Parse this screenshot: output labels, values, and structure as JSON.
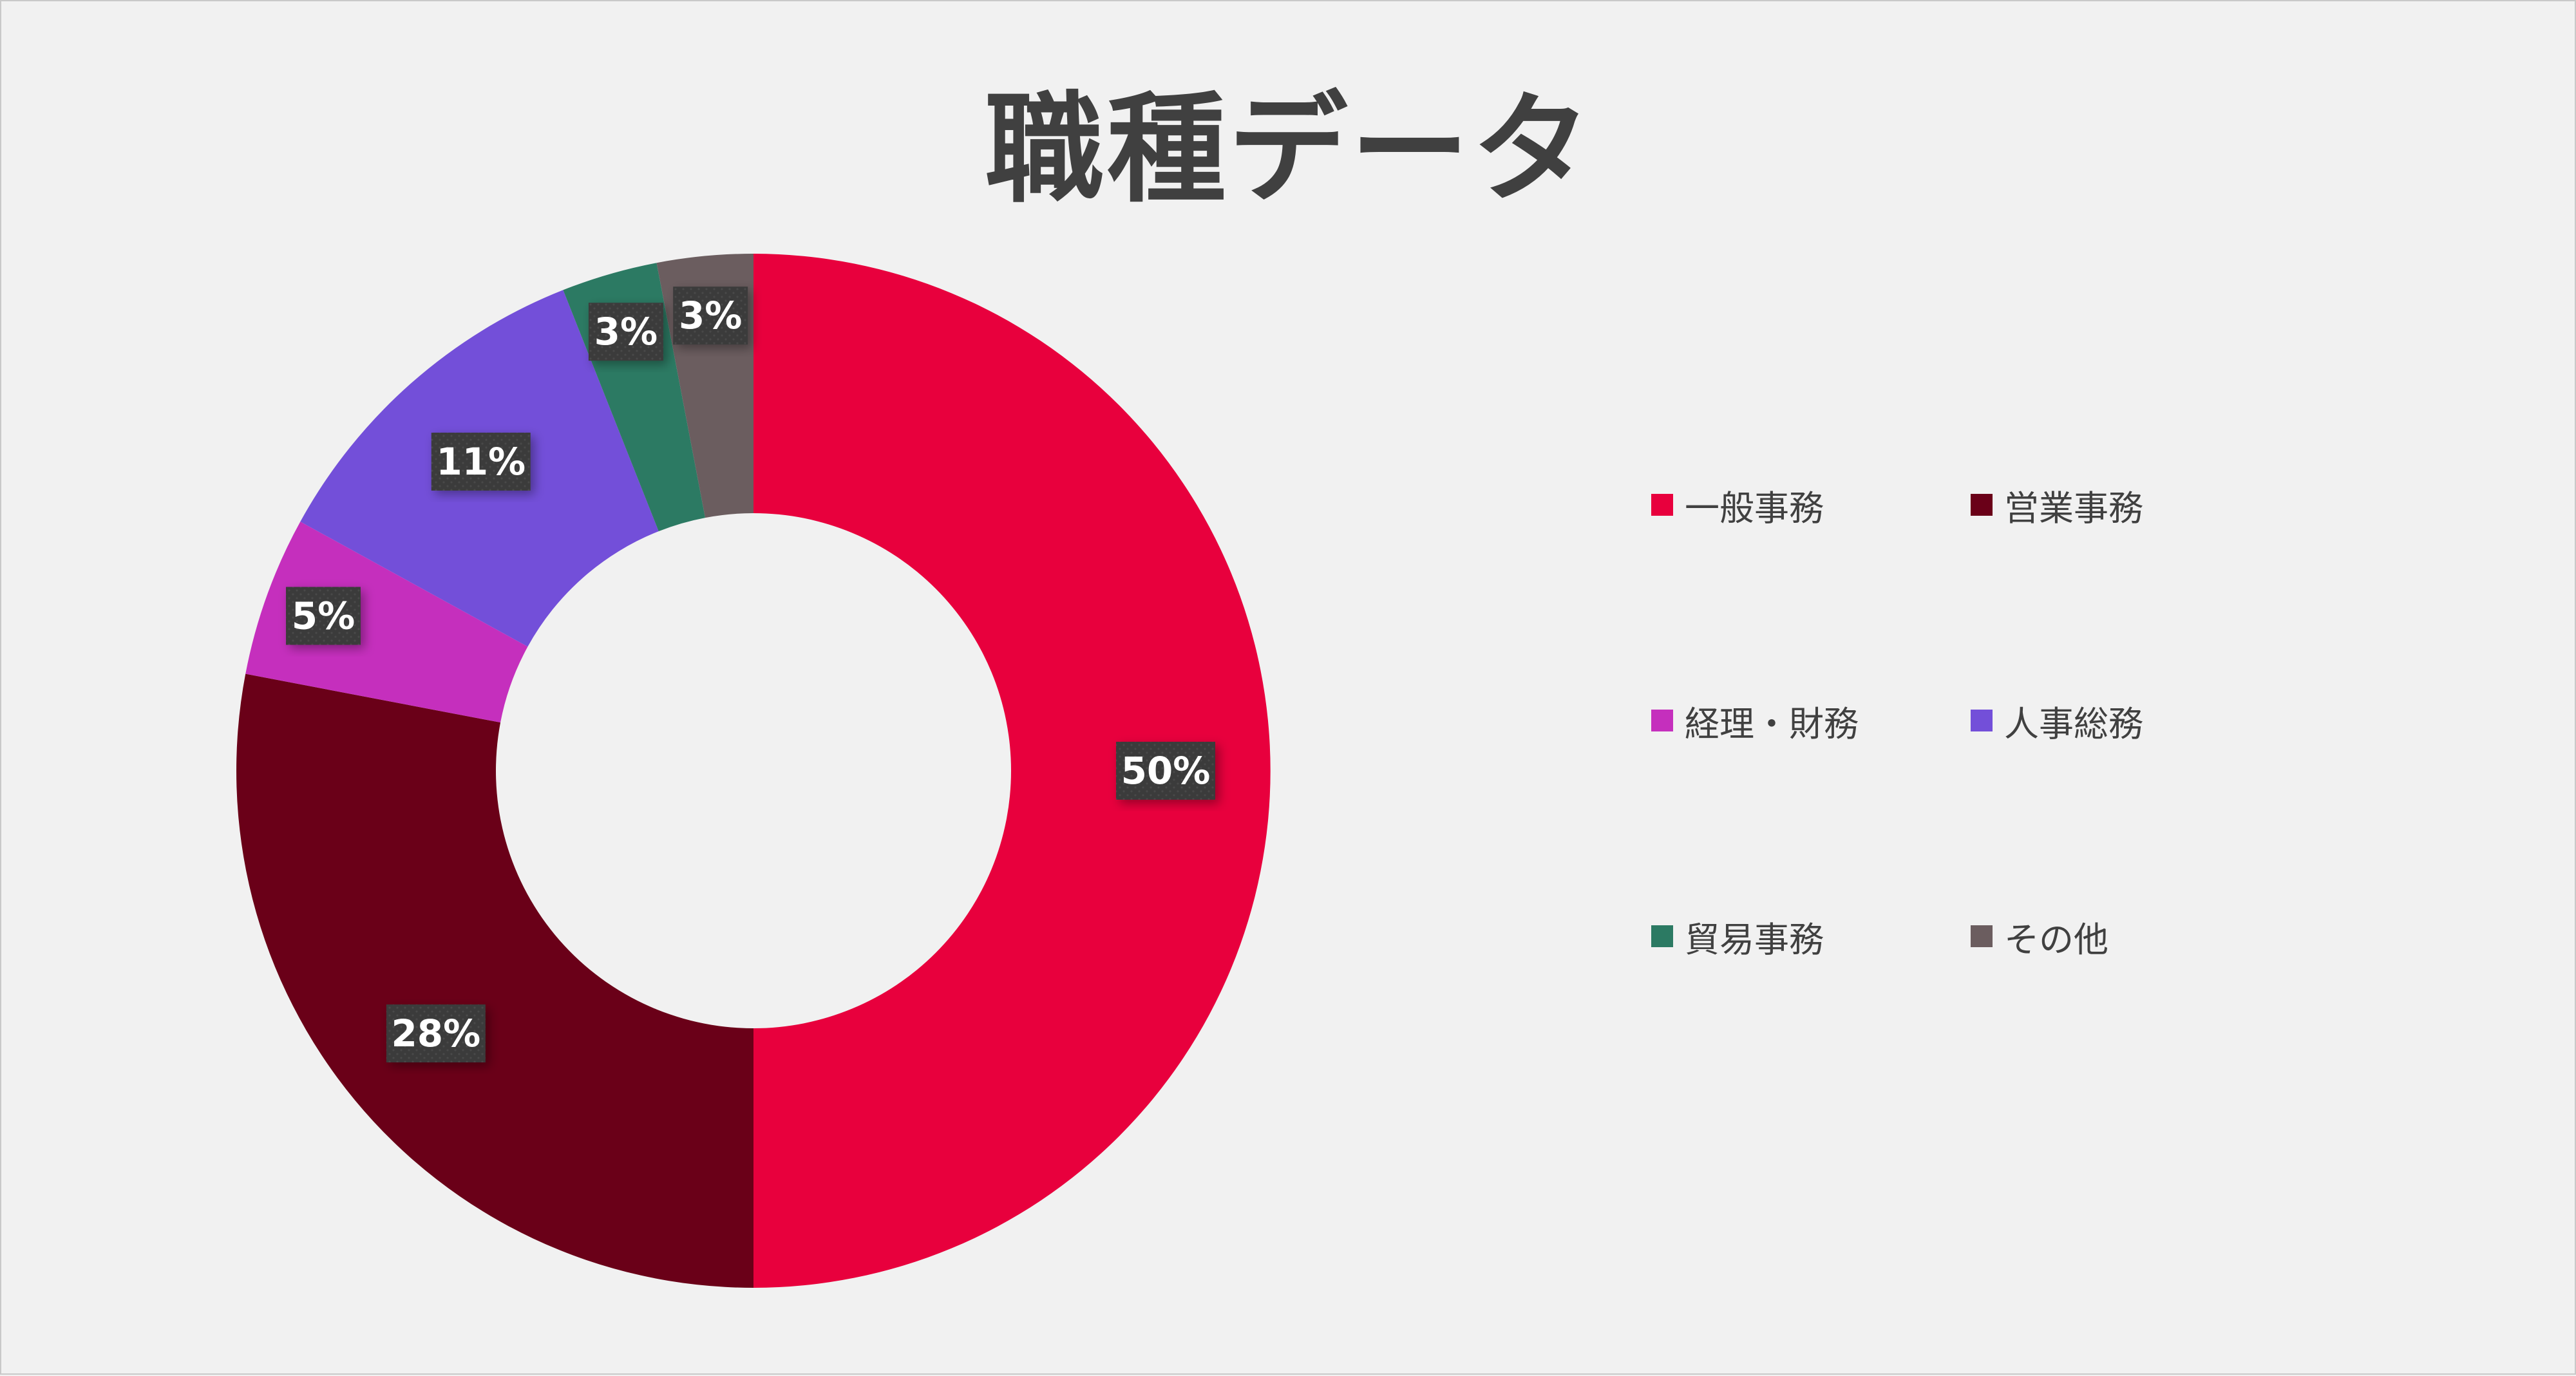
{
  "chart_data": {
    "type": "pie",
    "variant": "donut",
    "title": "職種データ",
    "categories": [
      "一般事務",
      "営業事務",
      "経理・財務",
      "人事総務",
      "貿易事務",
      "その他"
    ],
    "values": [
      50,
      28,
      5,
      11,
      3,
      3
    ],
    "data_labels": [
      "50%",
      "28%",
      "5%",
      "11%",
      "3%",
      "3%"
    ],
    "colors": [
      "#e8003d",
      "#6a0018",
      "#c52fbd",
      "#734fd9",
      "#2c7a63",
      "#6b5d5f"
    ],
    "legend_position": "right",
    "grid": false
  }
}
